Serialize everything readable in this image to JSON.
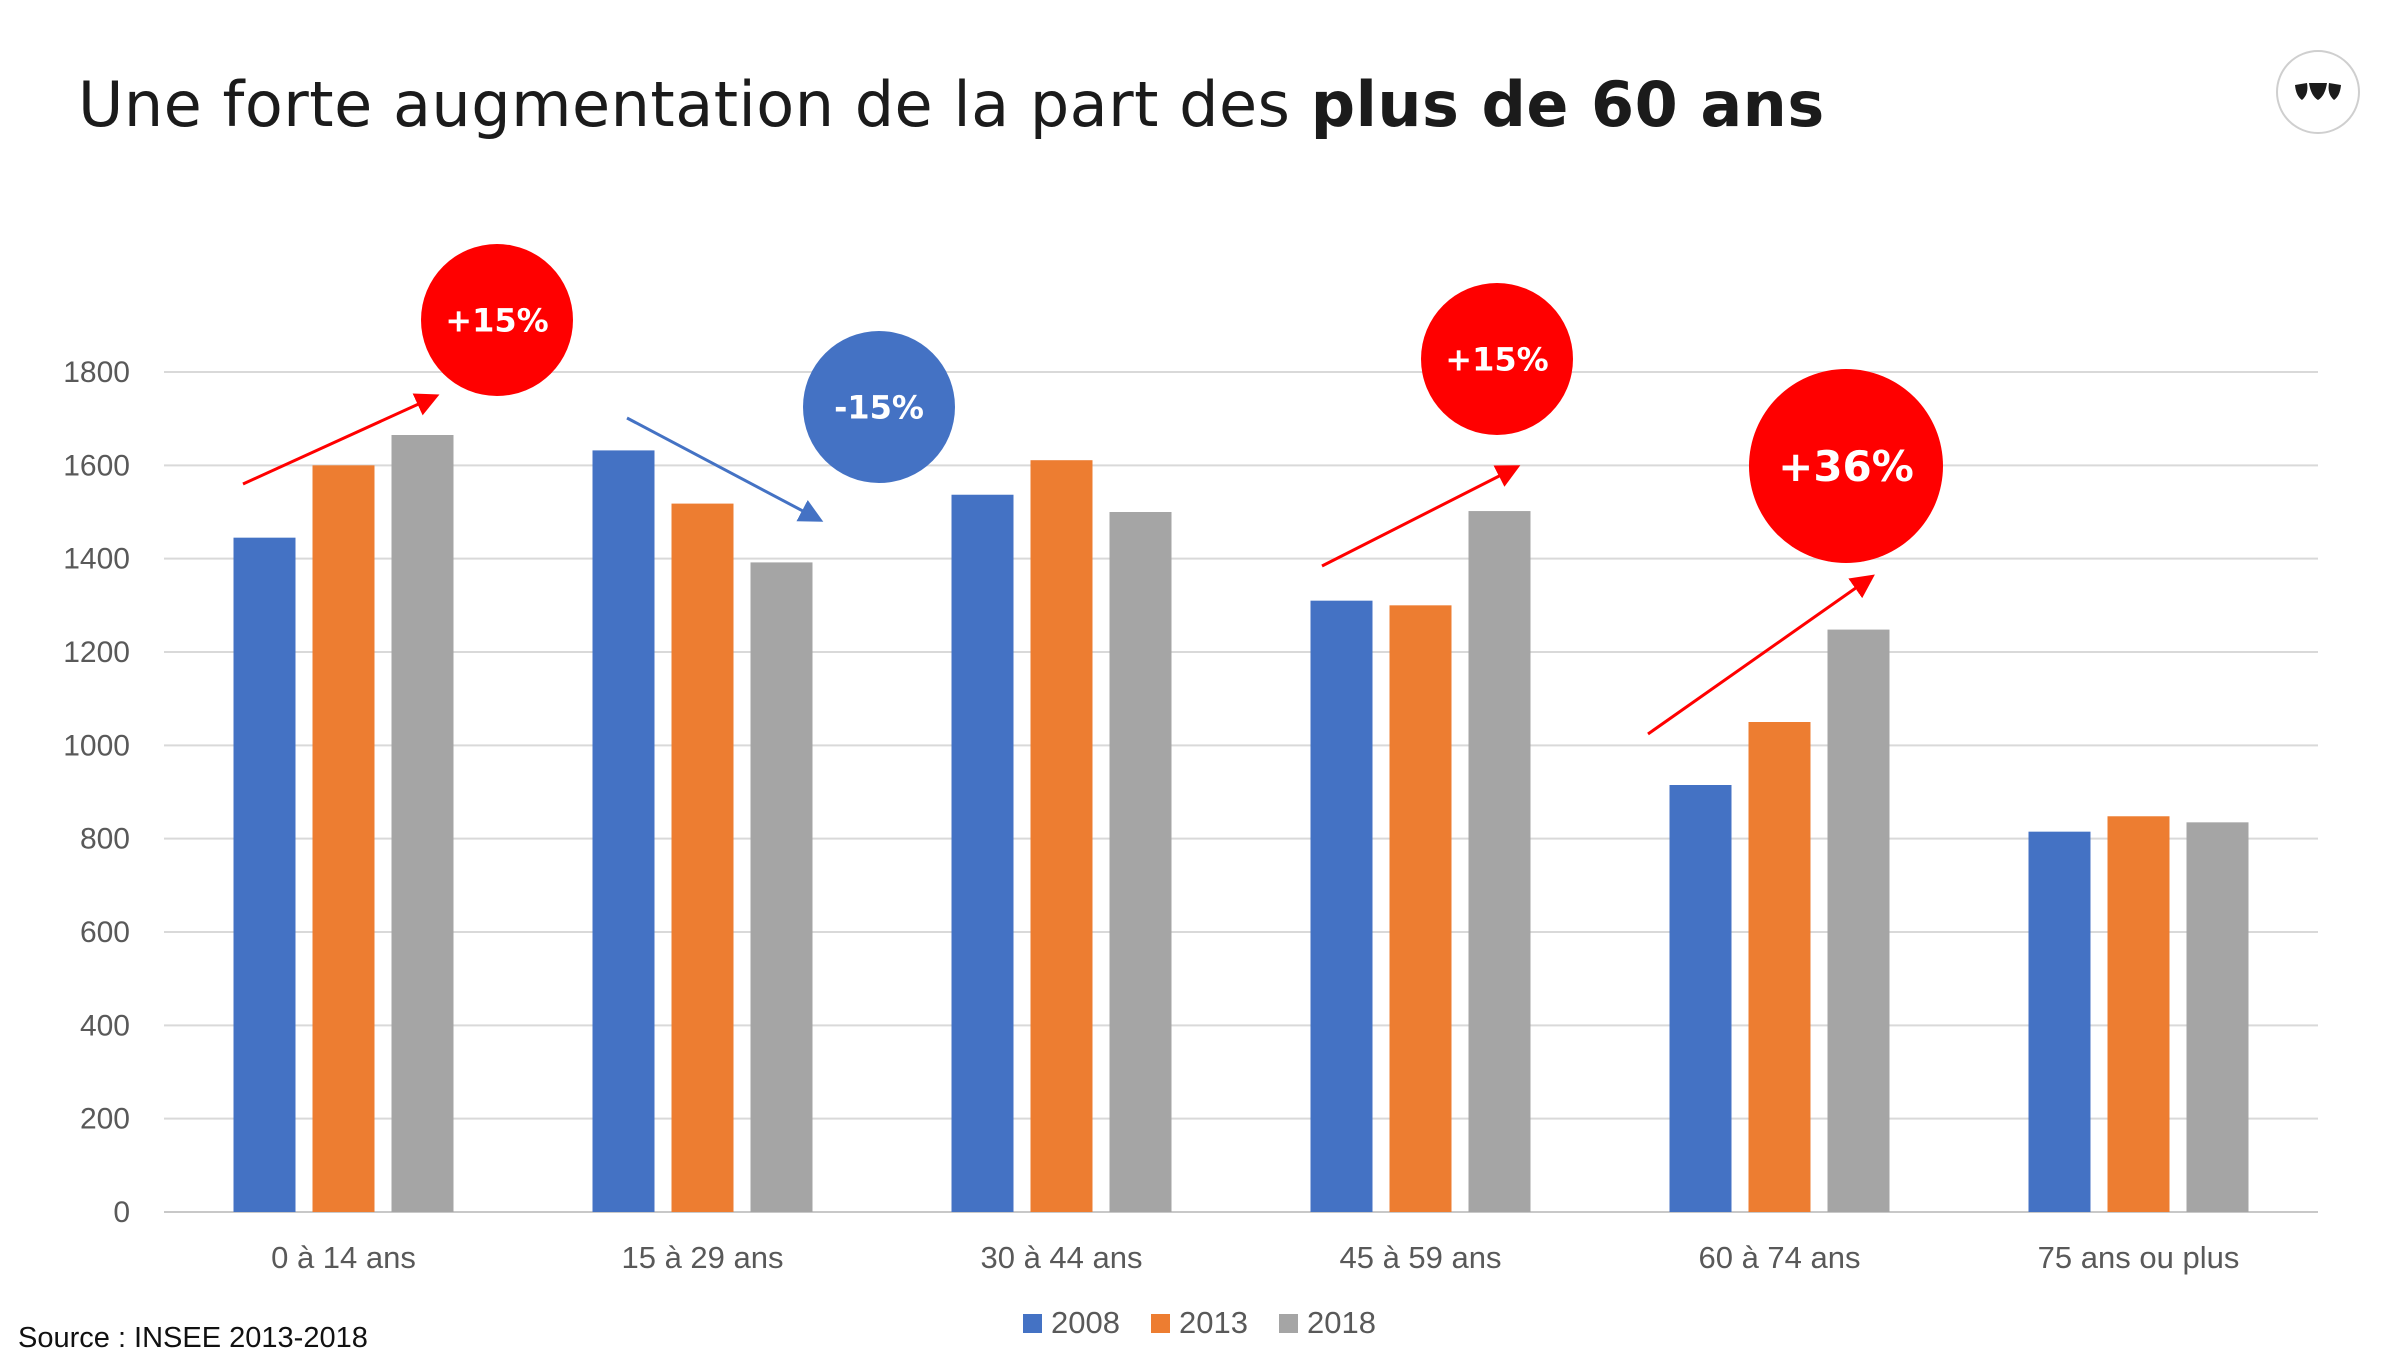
{
  "title": {
    "normal": "Une forte augmentation de la part des ",
    "bold": "plus de 60 ans"
  },
  "source": "Source : INSEE 2013-2018",
  "logo": {
    "icon": "brand-logo-icon"
  },
  "chart_data": {
    "type": "bar",
    "categories": [
      "0 à 14 ans",
      "15 à 29 ans",
      "30 à 44 ans",
      "45 à 59 ans",
      "60 à 74 ans",
      "75 ans ou plus"
    ],
    "series": [
      {
        "name": "2008",
        "color": "#4472C4",
        "values": [
          1445,
          1632,
          1537,
          1310,
          915,
          815
        ]
      },
      {
        "name": "2013",
        "color": "#ED7D31",
        "values": [
          1600,
          1518,
          1611,
          1300,
          1050,
          848
        ]
      },
      {
        "name": "2018",
        "color": "#A5A5A5",
        "values": [
          1665,
          1392,
          1500,
          1502,
          1248,
          835
        ]
      }
    ],
    "ylim": [
      0,
      1800
    ],
    "yticks": [
      0,
      200,
      400,
      600,
      800,
      1000,
      1200,
      1400,
      1600,
      1800
    ],
    "grid": true,
    "legend": "bottom-center",
    "annotations": [
      {
        "label": "+15%",
        "category": "0 à 14 ans",
        "color": "#FF0000",
        "trend": "up"
      },
      {
        "label": "-15%",
        "category": "15 à 29 ans",
        "color": "#4472C4",
        "trend": "down"
      },
      {
        "label": "+15%",
        "category": "45 à 59 ans",
        "color": "#FF0000",
        "trend": "up"
      },
      {
        "label": "+36%",
        "category": "60 à 74 ans",
        "color": "#FF0000",
        "trend": "up"
      }
    ]
  }
}
